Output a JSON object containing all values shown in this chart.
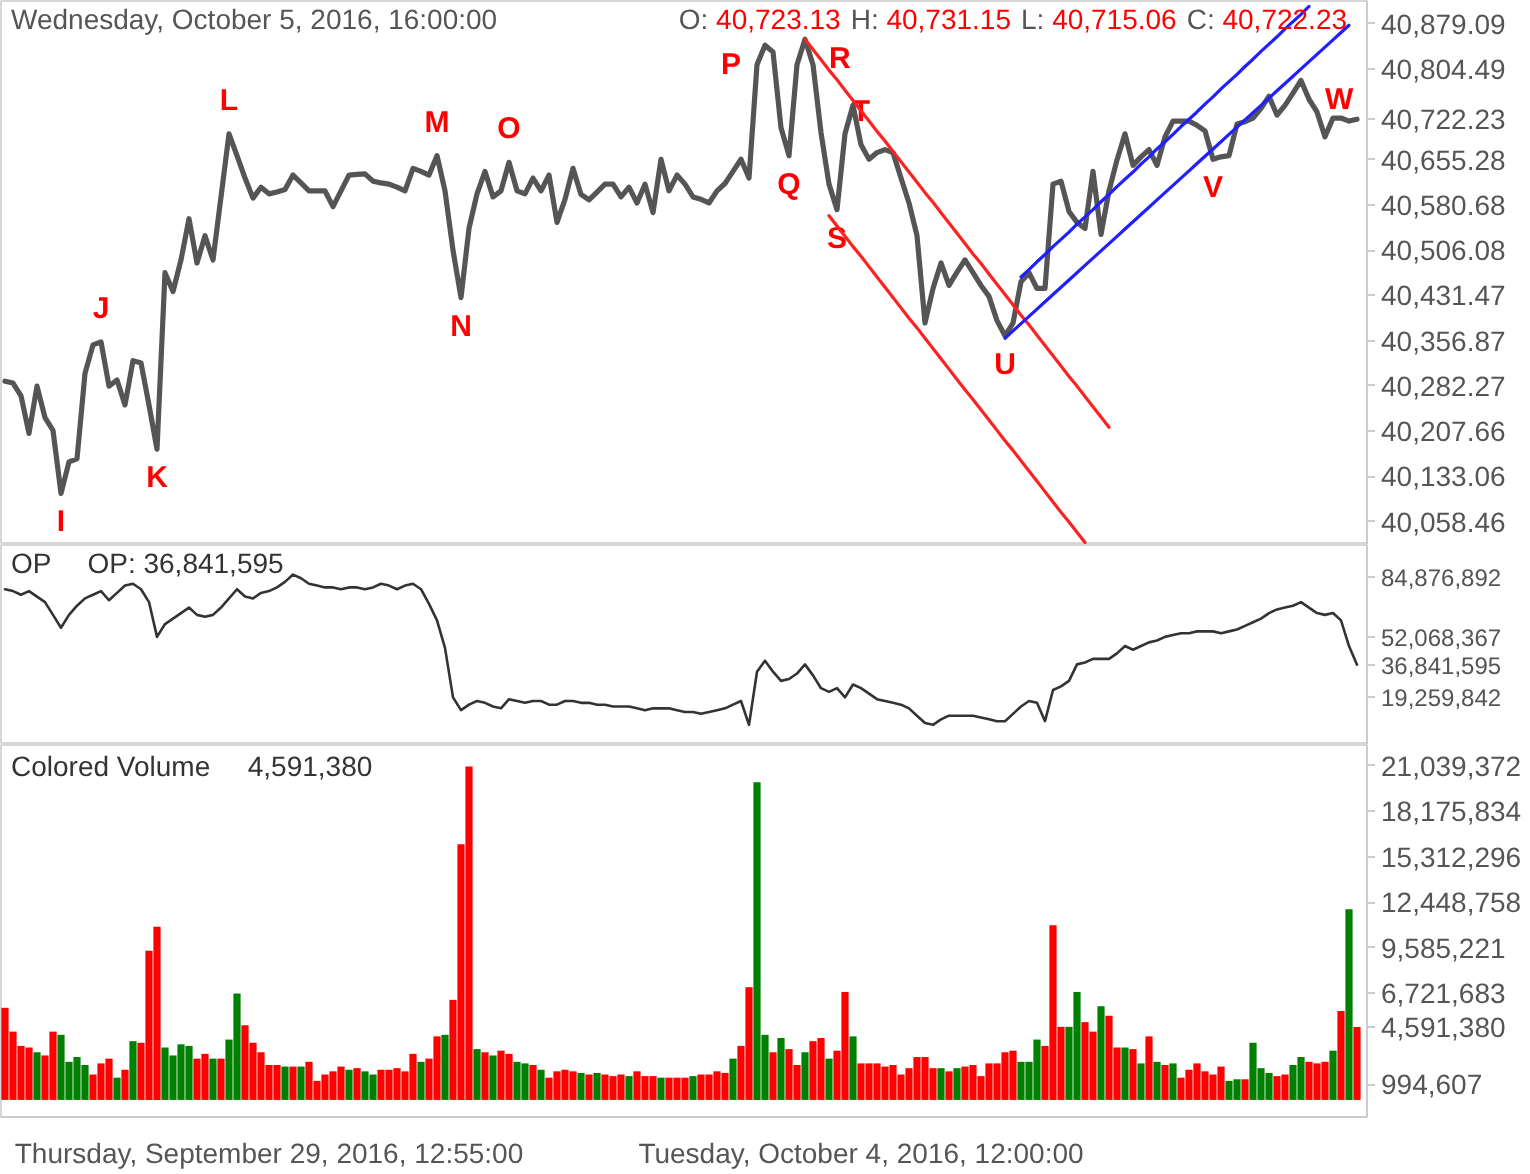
{
  "chart_data": [
    {
      "type": "line",
      "title": "Wednesday, October 5, 2016, 16:00:00",
      "annotations": [
        "O: 40,723.13",
        "H: 40,731.15",
        "L: 40,715.06",
        "C: 40,722.23"
      ],
      "categories": [
        null,
        null,
        null,
        null,
        null,
        null,
        null,
        null,
        null,
        null,
        null,
        null,
        null,
        null,
        null,
        null,
        null,
        null,
        null,
        null,
        null,
        null,
        null,
        null,
        null,
        null,
        null,
        null,
        null,
        null,
        null,
        null,
        null,
        null,
        null,
        null,
        null,
        null,
        null,
        null,
        null,
        null,
        null,
        null,
        null,
        null,
        null,
        null,
        null,
        null,
        null,
        null,
        null,
        null,
        null,
        null,
        null,
        null,
        null,
        null,
        null,
        null,
        null,
        null,
        null,
        null,
        null,
        null,
        null,
        null,
        null,
        null,
        null,
        null,
        null,
        null,
        null,
        null,
        null,
        null,
        null,
        null,
        null,
        null,
        null,
        null,
        null,
        null,
        null,
        null,
        null,
        null,
        null,
        null,
        null,
        null,
        null,
        null,
        null,
        null,
        null,
        null,
        null,
        null,
        null,
        null,
        null,
        null,
        null,
        null,
        null,
        null,
        null,
        null,
        null,
        null,
        null,
        null,
        null,
        null,
        null,
        null,
        null,
        null,
        null,
        null,
        null,
        null,
        null,
        null,
        null,
        null,
        null,
        null,
        null,
        null,
        null,
        null,
        null,
        null,
        null,
        null,
        null,
        null,
        null,
        null,
        null,
        null,
        null,
        null,
        null,
        null,
        null,
        null,
        null,
        null,
        null,
        null,
        null,
        null,
        null,
        null,
        null,
        null,
        null,
        null,
        null,
        null,
        null,
        null
      ],
      "ylim": [
        40020,
        40917
      ],
      "yticks": [
        {
          "value": 40058.46,
          "label": "40,058.46"
        },
        {
          "value": 40133.06,
          "label": "40,133.06"
        },
        {
          "value": 40207.66,
          "label": "40,207.66"
        },
        {
          "value": 40282.27,
          "label": "40,282.27"
        },
        {
          "value": 40356.87,
          "label": "40,356.87"
        },
        {
          "value": 40431.47,
          "label": "40,431.47"
        },
        {
          "value": 40506.08,
          "label": "40,506.08"
        },
        {
          "value": 40580.68,
          "label": "40,580.68"
        },
        {
          "value": 40655.28,
          "label": "40,655.28"
        },
        {
          "value": 40722.23,
          "label": "40,722.23"
        },
        {
          "value": 40804.49,
          "label": "40,804.49"
        },
        {
          "value": 40879.09,
          "label": "40,879.09"
        }
      ],
      "tick_labels": "y",
      "series": [
        {
          "color": "#555555",
          "values": [
            40290,
            40287,
            40266,
            40204,
            40282,
            40230,
            40209,
            40105,
            40157,
            40162,
            40303,
            40350,
            40355,
            40282,
            40292,
            40251,
            40324,
            40320,
            40251,
            40178,
            40469,
            40438,
            40490,
            40558,
            40485,
            40530,
            40490,
            40594,
            40698,
            40662,
            40625,
            40592,
            40610,
            40599,
            40602,
            40606,
            40630,
            40617,
            40604,
            40604,
            40604,
            40578,
            40604,
            40630,
            40631,
            40632,
            40620,
            40617,
            40615,
            40610,
            40604,
            40641,
            40636,
            40630,
            40662,
            40604,
            40506,
            40428,
            40542,
            40599,
            40636,
            40594,
            40604,
            40651,
            40604,
            40599,
            40625,
            40604,
            40630,
            40552,
            40590,
            40641,
            40598,
            40589,
            40602,
            40615,
            40615,
            40594,
            40610,
            40584,
            40615,
            40568,
            40656,
            40604,
            40630,
            40615,
            40594,
            40590,
            40584,
            40604,
            40616,
            40636,
            40656,
            40625,
            40812,
            40844,
            40833,
            40708,
            40662,
            40812,
            40854,
            40812,
            40700,
            40615,
            40573,
            40698,
            40745,
            40680,
            40656,
            40667,
            40672,
            40667,
            40625,
            40584,
            40530,
            40386,
            40443,
            40485,
            40448,
            40470,
            40490,
            40469,
            40448,
            40430,
            40390,
            40365,
            40386,
            40454,
            40469,
            40443,
            40443,
            40615,
            40620,
            40570,
            40552,
            40542,
            40636,
            40532,
            40604,
            40655,
            40698,
            40646,
            40660,
            40672,
            40646,
            40693,
            40719,
            40719,
            40719,
            40712,
            40703,
            40656,
            40660,
            40662,
            40714,
            40718,
            40724,
            40740,
            40760,
            40729,
            40745,
            40765,
            40786,
            40755,
            40734,
            40693,
            40724,
            40724,
            40719,
            40722
          ],
          "value_labels": [
            null,
            null,
            null,
            null,
            null,
            null,
            null,
            "I",
            null,
            null,
            null,
            null,
            "J",
            null,
            null,
            null,
            null,
            null,
            null,
            "K",
            null,
            null,
            null,
            null,
            null,
            null,
            null,
            null,
            "L",
            null,
            null,
            null,
            null,
            null,
            null,
            null,
            null,
            null,
            null,
            null,
            null,
            null,
            null,
            null,
            null,
            null,
            null,
            null,
            null,
            null,
            null,
            null,
            null,
            null,
            "M",
            null,
            null,
            "N",
            null,
            null,
            null,
            null,
            null,
            "O",
            null,
            null,
            null,
            null,
            null,
            null,
            null,
            null,
            null,
            null,
            null,
            null,
            null,
            null,
            null,
            null,
            null,
            null,
            null,
            null,
            null,
            null,
            null,
            null,
            null,
            null,
            null,
            null,
            null,
            null,
            null,
            "P",
            null,
            null,
            "Q",
            null,
            "R",
            null,
            null,
            null,
            "S",
            null,
            null,
            "T",
            null,
            null,
            null,
            null,
            null,
            null,
            null,
            null,
            null,
            null,
            null,
            null,
            null,
            null,
            null,
            null,
            null,
            "U",
            null,
            null,
            null,
            null,
            null,
            null,
            null,
            null,
            null,
            null,
            null,
            null,
            null,
            null,
            null,
            null,
            null,
            null,
            null,
            null,
            null,
            null,
            null,
            null,
            null,
            "V",
            null,
            null,
            null,
            null,
            null,
            null,
            null,
            null,
            null,
            null,
            "W",
            null,
            null,
            null,
            null,
            null,
            null,
            null
          ]
        },
        {
          "color": "#ff2020",
          "values": [
            null,
            null,
            null,
            null,
            null,
            null,
            null,
            null,
            null,
            null,
            null,
            null,
            null,
            null,
            null,
            null,
            null,
            null,
            null,
            null,
            null,
            null,
            null,
            null,
            null,
            null,
            null,
            null,
            null,
            null,
            null,
            null,
            null,
            null,
            null,
            null,
            null,
            null,
            null,
            null,
            null,
            null,
            null,
            null,
            null,
            null,
            null,
            null,
            null,
            null,
            null,
            null,
            null,
            null,
            null,
            null,
            null,
            null,
            null,
            null,
            null,
            null,
            null,
            null,
            null,
            null,
            null,
            null,
            null,
            null,
            null,
            null,
            null,
            null,
            null,
            null,
            null,
            null,
            null,
            null,
            null,
            null,
            null,
            null,
            null,
            null,
            null,
            null,
            null,
            null,
            null,
            null,
            null,
            null,
            null,
            null,
            null,
            null,
            null,
            null,
            40854,
            40837,
            40820,
            40803,
            40787,
            40770,
            40753,
            40736,
            40719,
            40702,
            40686,
            40669,
            40652,
            40635,
            40618,
            40601,
            40585,
            40568,
            40551,
            40534,
            40517,
            40500,
            40484,
            40467,
            40450,
            40433,
            40416,
            40399,
            40383,
            40366,
            40349,
            40332,
            40315,
            40298,
            40282,
            40265,
            40248,
            40231,
            40214,
            null,
            null,
            null,
            null,
            null,
            null,
            null,
            null,
            null,
            null,
            null,
            null,
            null,
            null,
            null,
            null,
            null,
            null,
            null,
            null,
            null,
            null,
            null,
            null,
            null,
            null,
            null,
            null,
            null,
            null,
            null
          ]
        },
        {
          "color": "#ff2020",
          "values": [
            null,
            null,
            null,
            null,
            null,
            null,
            null,
            null,
            null,
            null,
            null,
            null,
            null,
            null,
            null,
            null,
            null,
            null,
            null,
            null,
            null,
            null,
            null,
            null,
            null,
            null,
            null,
            null,
            null,
            null,
            null,
            null,
            null,
            null,
            null,
            null,
            null,
            null,
            null,
            null,
            null,
            null,
            null,
            null,
            null,
            null,
            null,
            null,
            null,
            null,
            null,
            null,
            null,
            null,
            null,
            null,
            null,
            null,
            null,
            null,
            null,
            null,
            null,
            null,
            null,
            null,
            null,
            null,
            null,
            null,
            null,
            null,
            null,
            null,
            null,
            null,
            null,
            null,
            null,
            null,
            null,
            null,
            null,
            null,
            null,
            null,
            null,
            null,
            null,
            null,
            null,
            null,
            null,
            null,
            null,
            null,
            null,
            null,
            null,
            null,
            null,
            null,
            null,
            40563,
            40546,
            40529,
            40512,
            40496,
            40479,
            40462,
            40445,
            40428,
            40411,
            40394,
            40378,
            40361,
            40344,
            40327,
            40310,
            40293,
            40276,
            40260,
            40243,
            40226,
            40209,
            40192,
            40176,
            40159,
            40142,
            40125,
            40108,
            40091,
            40074,
            40058,
            40041,
            40024,
            null,
            null,
            null,
            null,
            null,
            null,
            null,
            null,
            null,
            null,
            null,
            null,
            null,
            null,
            null,
            null,
            null,
            null,
            null,
            null,
            null,
            null,
            null,
            null,
            null,
            null,
            null,
            null,
            null,
            null,
            null,
            null,
            null,
            null
          ]
        },
        {
          "color": "#2020ff",
          "values": [
            null,
            null,
            null,
            null,
            null,
            null,
            null,
            null,
            null,
            null,
            null,
            null,
            null,
            null,
            null,
            null,
            null,
            null,
            null,
            null,
            null,
            null,
            null,
            null,
            null,
            null,
            null,
            null,
            null,
            null,
            null,
            null,
            null,
            null,
            null,
            null,
            null,
            null,
            null,
            null,
            null,
            null,
            null,
            null,
            null,
            null,
            null,
            null,
            null,
            null,
            null,
            null,
            null,
            null,
            null,
            null,
            null,
            null,
            null,
            null,
            null,
            null,
            null,
            null,
            null,
            null,
            null,
            null,
            null,
            null,
            null,
            null,
            null,
            null,
            null,
            null,
            null,
            null,
            null,
            null,
            null,
            null,
            null,
            null,
            null,
            null,
            null,
            null,
            null,
            null,
            null,
            null,
            null,
            null,
            null,
            null,
            null,
            null,
            null,
            null,
            null,
            null,
            null,
            null,
            null,
            null,
            null,
            null,
            null,
            null,
            null,
            null,
            null,
            null,
            null,
            null,
            null,
            null,
            null,
            null,
            null,
            null,
            null,
            null,
            null,
            null,
            null,
            40462,
            40474,
            40487,
            40499,
            40512,
            40524,
            40536,
            40549,
            40561,
            40573,
            40586,
            40598,
            40611,
            40623,
            40635,
            40648,
            40660,
            40673,
            40685,
            40697,
            40710,
            40722,
            40734,
            40747,
            40759,
            40772,
            40784,
            40796,
            40809,
            40821,
            40834,
            40846,
            40858,
            40871,
            40883,
            40895,
            40908,
            null,
            null,
            null,
            null,
            null,
            null
          ]
        },
        {
          "color": "#2020ff",
          "values": [
            null,
            null,
            null,
            null,
            null,
            null,
            null,
            null,
            null,
            null,
            null,
            null,
            null,
            null,
            null,
            null,
            null,
            null,
            null,
            null,
            null,
            null,
            null,
            null,
            null,
            null,
            null,
            null,
            null,
            null,
            null,
            null,
            null,
            null,
            null,
            null,
            null,
            null,
            null,
            null,
            null,
            null,
            null,
            null,
            null,
            null,
            null,
            null,
            null,
            null,
            null,
            null,
            null,
            null,
            null,
            null,
            null,
            null,
            null,
            null,
            null,
            null,
            null,
            null,
            null,
            null,
            null,
            null,
            null,
            null,
            null,
            null,
            null,
            null,
            null,
            null,
            null,
            null,
            null,
            null,
            null,
            null,
            null,
            null,
            null,
            null,
            null,
            null,
            null,
            null,
            null,
            null,
            null,
            null,
            null,
            null,
            null,
            null,
            null,
            null,
            null,
            null,
            null,
            null,
            null,
            null,
            null,
            null,
            null,
            null,
            null,
            null,
            null,
            null,
            null,
            null,
            null,
            null,
            null,
            null,
            null,
            null,
            null,
            null,
            null,
            40361,
            40373,
            40385,
            40397,
            40409,
            40421,
            40433,
            40445,
            40457,
            40469,
            40481,
            40493,
            40505,
            40517,
            40529,
            40541,
            40553,
            40565,
            40577,
            40589,
            40601,
            40613,
            40625,
            40637,
            40649,
            40661,
            40673,
            40685,
            40697,
            40709,
            40721,
            40733,
            40745,
            40757,
            40769,
            40781,
            40793,
            40805,
            40817,
            40829,
            40841,
            40853,
            40865,
            40877,
            null
          ]
        }
      ]
    },
    {
      "type": "line",
      "title": "OP",
      "subtitle": "OP: 36,841,595",
      "categories": [
        null,
        null,
        null,
        null,
        null,
        null,
        null,
        null,
        null,
        null,
        null,
        null,
        null,
        null,
        null,
        null,
        null,
        null,
        null,
        null,
        null,
        null,
        null,
        null,
        null,
        null,
        null,
        null,
        null,
        null,
        null,
        null,
        null,
        null,
        null,
        null,
        null,
        null,
        null,
        null,
        null,
        null,
        null,
        null,
        null,
        null,
        null,
        null,
        null,
        null,
        null,
        null,
        null,
        null,
        null,
        null,
        null,
        null,
        null,
        null,
        null,
        null,
        null,
        null,
        null,
        null,
        null,
        null,
        null,
        null,
        null,
        null,
        null,
        null,
        null,
        null,
        null,
        null,
        null,
        null,
        null,
        null,
        null,
        null,
        null,
        null,
        null,
        null,
        null,
        null,
        null,
        null,
        null,
        null,
        null,
        null,
        null,
        null,
        null,
        null,
        null,
        null,
        null,
        null,
        null,
        null,
        null,
        null,
        null,
        null,
        null,
        null,
        null,
        null,
        null,
        null,
        null,
        null,
        null,
        null,
        null,
        null,
        null,
        null,
        null,
        null,
        null,
        null,
        null,
        null,
        null,
        null,
        null,
        null,
        null,
        null,
        null,
        null,
        null,
        null,
        null,
        null,
        null,
        null,
        null,
        null,
        null,
        null,
        null,
        null,
        null,
        null,
        null,
        null,
        null,
        null,
        null,
        null,
        null,
        null,
        null,
        null,
        null,
        null,
        null,
        null,
        null,
        null,
        null,
        null
      ],
      "ylim": [
        -7000000,
        102140000
      ],
      "yticks": [
        {
          "value": 19259842,
          "label": "19,259,842"
        },
        {
          "value": 36841595,
          "label": "36,841,595"
        },
        {
          "value": 52068367,
          "label": "52,068,367"
        },
        {
          "value": 84876892,
          "label": "84,876,892"
        }
      ],
      "tick_labels": "y",
      "series": [
        {
          "color": "#333333",
          "values": [
            78000000,
            77000000,
            75000000,
            77000000,
            74000000,
            71000000,
            64000000,
            57000000,
            64000000,
            69000000,
            73000000,
            75000000,
            77000000,
            72000000,
            76000000,
            80000000,
            81000000,
            78000000,
            71000000,
            52000000,
            59000000,
            62000000,
            65000000,
            68000000,
            64000000,
            63000000,
            64000000,
            68000000,
            73000000,
            78000000,
            74000000,
            73000000,
            76000000,
            77000000,
            79000000,
            82000000,
            86000000,
            84000000,
            81000000,
            80000000,
            79000000,
            79000000,
            78000000,
            79000000,
            79000000,
            78000000,
            79000000,
            81000000,
            80000000,
            78000000,
            80000000,
            81000000,
            78000000,
            70000000,
            61000000,
            46000000,
            19000000,
            12000000,
            15000000,
            17000000,
            16000000,
            14000000,
            13000000,
            18000000,
            17000000,
            16000000,
            17000000,
            17000000,
            15000000,
            15000000,
            17000000,
            17000000,
            16000000,
            16000000,
            15000000,
            15000000,
            14000000,
            14000000,
            14000000,
            13000000,
            12000000,
            13000000,
            13000000,
            13000000,
            12000000,
            11000000,
            11000000,
            10000000,
            11000000,
            12000000,
            13000000,
            15000000,
            17000000,
            4000000,
            33000000,
            39000000,
            33000000,
            28000000,
            29000000,
            32000000,
            37000000,
            31000000,
            24000000,
            22000000,
            24000000,
            19000000,
            26000000,
            24000000,
            21000000,
            18000000,
            17000000,
            16000000,
            15000000,
            13000000,
            9000000,
            5000000,
            4000000,
            7000000,
            9000000,
            9000000,
            9000000,
            9000000,
            8000000,
            7000000,
            6000000,
            6000000,
            10000000,
            14000000,
            17000000,
            16000000,
            6000000,
            23000000,
            25000000,
            28000000,
            37000000,
            38000000,
            40000000,
            40000000,
            40000000,
            43000000,
            47000000,
            45000000,
            47000000,
            49000000,
            50000000,
            52000000,
            53000000,
            54000000,
            54000000,
            55000000,
            55000000,
            55000000,
            54000000,
            55000000,
            56000000,
            58000000,
            60000000,
            62000000,
            65000000,
            67000000,
            68000000,
            69000000,
            71000000,
            68000000,
            65000000,
            64000000,
            65000000,
            61000000,
            47000000,
            36841595
          ]
        }
      ]
    },
    {
      "type": "bar",
      "title": "Colored Volume",
      "subtitle": "4,591,380",
      "categories": [
        null,
        null,
        null,
        null,
        null,
        null,
        null,
        null,
        null,
        null,
        null,
        null,
        null,
        null,
        null,
        null,
        null,
        null,
        null,
        null,
        null,
        null,
        null,
        null,
        null,
        null,
        null,
        null,
        null,
        null,
        null,
        null,
        null,
        "Thursday, September 29, 2016, 12:55:00",
        null,
        null,
        null,
        null,
        null,
        null,
        null,
        null,
        null,
        null,
        null,
        null,
        null,
        null,
        null,
        null,
        null,
        null,
        null,
        null,
        null,
        null,
        null,
        null,
        null,
        null,
        null,
        null,
        null,
        null,
        null,
        null,
        null,
        null,
        null,
        null,
        null,
        null,
        null,
        null,
        null,
        null,
        null,
        null,
        null,
        null,
        null,
        null,
        null,
        null,
        null,
        null,
        null,
        null,
        null,
        null,
        null,
        null,
        null,
        null,
        null,
        null,
        null,
        null,
        null,
        null,
        null,
        null,
        null,
        null,
        null,
        null,
        null,
        "Tuesday, October 4, 2016, 12:00:00",
        null,
        null,
        null,
        null,
        null,
        null,
        null,
        null,
        null,
        null,
        null,
        null,
        null,
        null,
        null,
        null,
        null,
        null,
        null,
        null,
        null,
        null,
        null,
        null,
        null,
        null,
        null,
        null,
        null,
        null,
        null,
        null,
        null,
        null,
        null,
        null,
        null,
        null,
        null,
        null,
        null,
        null,
        null,
        null,
        null,
        null,
        null,
        null,
        null,
        null,
        null,
        null,
        null,
        null,
        null,
        null,
        null,
        null,
        null,
        null,
        null,
        null
      ],
      "ylim": [
        -1076000,
        22350000
      ],
      "yticks": [
        {
          "value": 994607,
          "label": "994,607"
        },
        {
          "value": 4591380,
          "label": "4,591,380"
        },
        {
          "value": 6721683,
          "label": "6,721,683"
        },
        {
          "value": 9585221,
          "label": "9,585,221"
        },
        {
          "value": 12448758,
          "label": "12,448,758"
        },
        {
          "value": 15312296,
          "label": "15,312,296"
        },
        {
          "value": 18175834,
          "label": "18,175,834"
        },
        {
          "value": 21039372,
          "label": "21,039,372"
        }
      ],
      "values": [
        5800000,
        4300000,
        3400000,
        3300000,
        3000000,
        2800000,
        4300000,
        4100000,
        2400000,
        2700000,
        2200000,
        1600000,
        2300000,
        2600000,
        1400000,
        1900000,
        3700000,
        3600000,
        9400000,
        10900000,
        3300000,
        2800000,
        3500000,
        3400000,
        2600000,
        2900000,
        2600000,
        2600000,
        3800000,
        6700000,
        4700000,
        3600000,
        3000000,
        2200000,
        2200000,
        2100000,
        2100000,
        2100000,
        2400000,
        1200000,
        1600000,
        1800000,
        2100000,
        1900000,
        2000000,
        1800000,
        1600000,
        1900000,
        1900000,
        2000000,
        1800000,
        2900000,
        2400000,
        2600000,
        4000000,
        4100000,
        6300000,
        16100000,
        21000000,
        3200000,
        3000000,
        2800000,
        3100000,
        2900000,
        2400000,
        2300000,
        2200000,
        1900000,
        1400000,
        1800000,
        1900000,
        1800000,
        1700000,
        1600000,
        1700000,
        1600000,
        1500000,
        1600000,
        1500000,
        1800000,
        1500000,
        1500000,
        1400000,
        1400000,
        1400000,
        1400000,
        1500000,
        1600000,
        1600000,
        1800000,
        1700000,
        2600000,
        3400000,
        7100000,
        20000000,
        4100000,
        3000000,
        3900000,
        3200000,
        2200000,
        3000000,
        3700000,
        3900000,
        2600000,
        3100000,
        6800000,
        4000000,
        2300000,
        2300000,
        2300000,
        2100000,
        2200000,
        1600000,
        2000000,
        2700000,
        2700000,
        2000000,
        2000000,
        1800000,
        2000000,
        2100000,
        2200000,
        1500000,
        2300000,
        2300000,
        3000000,
        3100000,
        2400000,
        2400000,
        3800000,
        3400000,
        11000000,
        4600000,
        4600000,
        6800000,
        4900000,
        4300000,
        5900000,
        5300000,
        3300000,
        3300000,
        3200000,
        2300000,
        4000000,
        2400000,
        2200000,
        2300000,
        1400000,
        1900000,
        2300000,
        1800000,
        1600000,
        2100000,
        1200000,
        1300000,
        1300000,
        3600000,
        2000000,
        1700000,
        1500000,
        1600000,
        2200000,
        2700000,
        2400000,
        2300000,
        2400000,
        3100000,
        5600000,
        12000000,
        4591380
      ],
      "colors": [
        "#ff0000",
        "#ff0000",
        "#ff0000",
        "#ff0000",
        "#008000",
        "#ff0000",
        "#ff0000",
        "#008000",
        "#008000",
        "#008000",
        "#008000",
        "#ff0000",
        "#ff0000",
        "#ff0000",
        "#008000",
        "#ff0000",
        "#008000",
        "#ff0000",
        "#ff0000",
        "#ff0000",
        "#008000",
        "#008000",
        "#008000",
        "#008000",
        "#ff0000",
        "#ff0000",
        "#008000",
        "#ff0000",
        "#008000",
        "#008000",
        "#ff0000",
        "#ff0000",
        "#ff0000",
        "#ff0000",
        "#ff0000",
        "#008000",
        "#ff0000",
        "#008000",
        "#ff0000",
        "#ff0000",
        "#ff0000",
        "#ff0000",
        "#ff0000",
        "#008000",
        "#ff0000",
        "#008000",
        "#008000",
        "#ff0000",
        "#ff0000",
        "#ff0000",
        "#ff0000",
        "#ff0000",
        "#008000",
        "#ff0000",
        "#ff0000",
        "#008000",
        "#ff0000",
        "#ff0000",
        "#ff0000",
        "#008000",
        "#ff0000",
        "#008000",
        "#ff0000",
        "#ff0000",
        "#008000",
        "#008000",
        "#ff0000",
        "#008000",
        "#ff0000",
        "#ff0000",
        "#ff0000",
        "#ff0000",
        "#008000",
        "#ff0000",
        "#008000",
        "#ff0000",
        "#ff0000",
        "#ff0000",
        "#008000",
        "#ff0000",
        "#ff0000",
        "#ff0000",
        "#008000",
        "#ff0000",
        "#ff0000",
        "#ff0000",
        "#008000",
        "#ff0000",
        "#ff0000",
        "#ff0000",
        "#ff0000",
        "#008000",
        "#ff0000",
        "#ff0000",
        "#008000",
        "#008000",
        "#ff0000",
        "#008000",
        "#ff0000",
        "#ff0000",
        "#008000",
        "#ff0000",
        "#ff0000",
        "#008000",
        "#ff0000",
        "#ff0000",
        "#008000",
        "#ff0000",
        "#ff0000",
        "#ff0000",
        "#ff0000",
        "#ff0000",
        "#ff0000",
        "#ff0000",
        "#ff0000",
        "#ff0000",
        "#ff0000",
        "#008000",
        "#ff0000",
        "#008000",
        "#ff0000",
        "#ff0000",
        "#ff0000",
        "#ff0000",
        "#ff0000",
        "#ff0000",
        "#ff0000",
        "#008000",
        "#008000",
        "#008000",
        "#ff0000",
        "#ff0000",
        "#ff0000",
        "#008000",
        "#008000",
        "#ff0000",
        "#ff0000",
        "#008000",
        "#ff0000",
        "#ff0000",
        "#008000",
        "#ff0000",
        "#008000",
        "#ff0000",
        "#008000",
        "#ff0000",
        "#008000",
        "#ff0000",
        "#ff0000",
        "#ff0000",
        "#ff0000",
        "#ff0000",
        "#ff0000",
        "#008000",
        "#008000",
        "#ff0000",
        "#008000",
        "#008000",
        "#008000",
        "#ff0000",
        "#ff0000",
        "#008000",
        "#008000",
        "#ff0000",
        "#ff0000",
        "#ff0000",
        "#008000",
        "#ff0000",
        "#008000",
        "#ff0000"
      ]
    }
  ]
}
